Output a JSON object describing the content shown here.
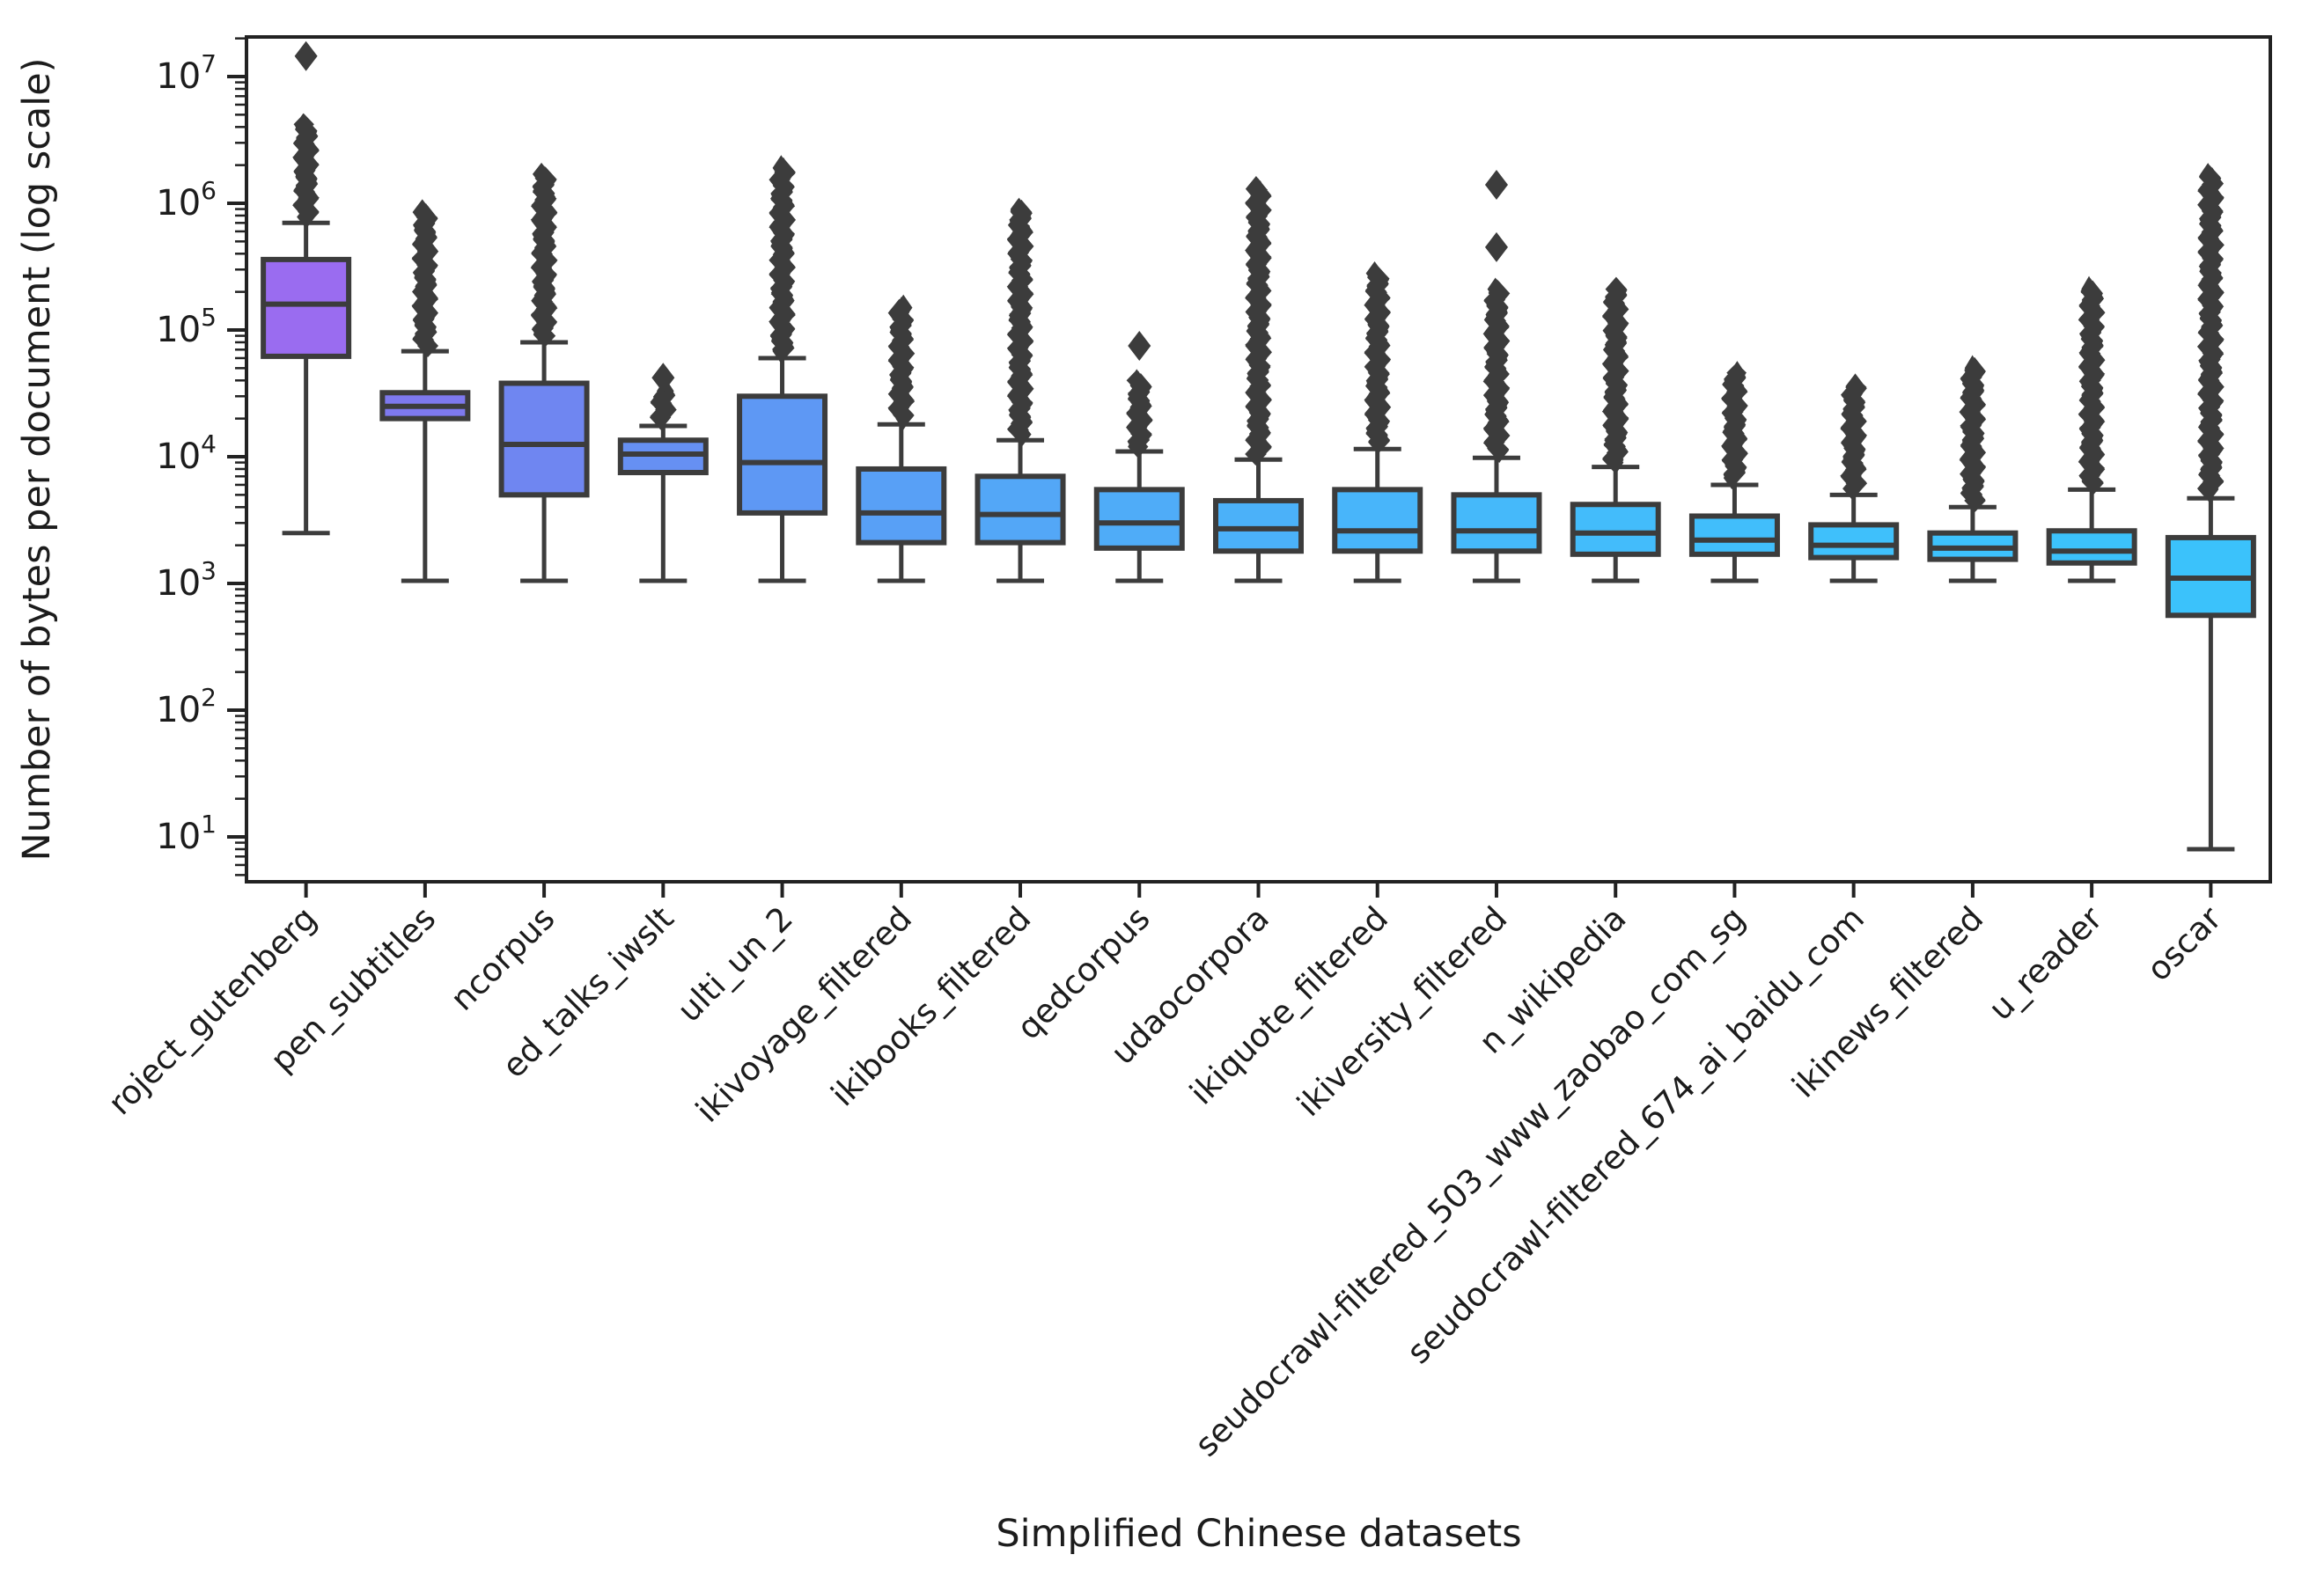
{
  "figure": {
    "background": "#ffffff"
  },
  "chart_data": {
    "type": "box",
    "xlabel": "Simplified Chinese datasets",
    "ylabel": "Number of bytes per document (log scale)",
    "y_scale": "log",
    "y_tick_exponents": [
      7,
      6,
      5,
      4,
      3,
      2,
      1
    ],
    "ylim_log": [
      0.64,
      7.31
    ],
    "grid": false,
    "legend": "none",
    "line_color": "#3C3C3C",
    "spine_color": "#222222",
    "series": [
      {
        "label": "roject_gutenberg",
        "color": "#9A6CF0",
        "whisker_low": 2500,
        "q1": 62000,
        "median": 160000,
        "q3": 360000,
        "whisker_high": 700000,
        "outlier_column": [
          780000,
          4200000
        ],
        "extra_outliers": [
          14500000
        ]
      },
      {
        "label": "pen_subtitles",
        "color": "#7E79EE",
        "whisker_low": 1050,
        "q1": 20000,
        "median": 25000,
        "q3": 32000,
        "whisker_high": 68000,
        "outlier_column": [
          75000,
          850000
        ],
        "extra_outliers": []
      },
      {
        "label": "ncorpus",
        "color": "#6F86F1",
        "whisker_low": 1050,
        "q1": 5000,
        "median": 12500,
        "q3": 38000,
        "whisker_high": 80000,
        "outlier_column": [
          90000,
          1700000
        ],
        "extra_outliers": []
      },
      {
        "label": "ed_talks_iwslt",
        "color": "#6690F3",
        "whisker_low": 1050,
        "q1": 7500,
        "median": 10500,
        "q3": 13500,
        "whisker_high": 17500,
        "outlier_column": [
          20000,
          33000
        ],
        "extra_outliers": [
          42000
        ]
      },
      {
        "label": "ulti_un_2",
        "color": "#5E98F4",
        "whisker_low": 1050,
        "q1": 3600,
        "median": 9000,
        "q3": 30000,
        "whisker_high": 60000,
        "outlier_column": [
          68000,
          1900000
        ],
        "extra_outliers": []
      },
      {
        "label": "ikivoyage_filtered",
        "color": "#58A0F6",
        "whisker_low": 1050,
        "q1": 2100,
        "median": 3600,
        "q3": 8000,
        "whisker_high": 18000,
        "outlier_column": [
          20000,
          150000
        ],
        "extra_outliers": []
      },
      {
        "label": "ikibooks_filtered",
        "color": "#53A7F7",
        "whisker_low": 1050,
        "q1": 2100,
        "median": 3500,
        "q3": 7000,
        "whisker_high": 13500,
        "outlier_column": [
          15000,
          900000
        ],
        "extra_outliers": []
      },
      {
        "label": "qedcorpus",
        "color": "#4FACF8",
        "whisker_low": 1050,
        "q1": 1900,
        "median": 3000,
        "q3": 5500,
        "whisker_high": 11000,
        "outlier_column": [
          12000,
          40000
        ],
        "extra_outliers": [
          75000
        ]
      },
      {
        "label": "udaocorpora",
        "color": "#4BB1F9",
        "whisker_low": 1050,
        "q1": 1800,
        "median": 2700,
        "q3": 4500,
        "whisker_high": 9500,
        "outlier_column": [
          10500,
          1300000
        ],
        "extra_outliers": []
      },
      {
        "label": "ikiquote_filtered",
        "color": "#48B5FA",
        "whisker_low": 1050,
        "q1": 1800,
        "median": 2600,
        "q3": 5500,
        "whisker_high": 11500,
        "outlier_column": [
          13000,
          280000
        ],
        "extra_outliers": []
      },
      {
        "label": "ikiversity_filtered",
        "color": "#45B9FA",
        "whisker_low": 1050,
        "q1": 1800,
        "median": 2600,
        "q3": 5000,
        "whisker_high": 9800,
        "outlier_column": [
          11000,
          210000
        ],
        "extra_outliers": [
          450000,
          1400000
        ]
      },
      {
        "label": "n_wikipedia",
        "color": "#43BCFB",
        "whisker_low": 1050,
        "q1": 1700,
        "median": 2500,
        "q3": 4200,
        "whisker_high": 8300,
        "outlier_column": [
          9000,
          210000
        ],
        "extra_outliers": []
      },
      {
        "label": "seudocrawl-filtered_503_www_zaobao_com_sg",
        "color": "#41BEFB",
        "whisker_low": 1050,
        "q1": 1700,
        "median": 2200,
        "q3": 3400,
        "whisker_high": 6000,
        "outlier_column": [
          6800,
          46000
        ],
        "extra_outliers": []
      },
      {
        "label": "seudocrawl-filtered_674_ai_baidu_com",
        "color": "#3FC0FB",
        "whisker_low": 1050,
        "q1": 1600,
        "median": 2000,
        "q3": 2900,
        "whisker_high": 5000,
        "outlier_column": [
          5600,
          36000
        ],
        "extra_outliers": []
      },
      {
        "label": "ikinews_filtered",
        "color": "#3DC1FB",
        "whisker_low": 1050,
        "q1": 1550,
        "median": 1900,
        "q3": 2500,
        "whisker_high": 4000,
        "outlier_column": [
          4500,
          50000
        ],
        "extra_outliers": []
      },
      {
        "label": "u_reader",
        "color": "#3CC2FB",
        "whisker_low": 1050,
        "q1": 1450,
        "median": 1800,
        "q3": 2600,
        "whisker_high": 5500,
        "outlier_column": [
          6200,
          210000
        ],
        "extra_outliers": []
      },
      {
        "label": "oscar",
        "color": "#3BC2FB",
        "whisker_low": 8,
        "q1": 560,
        "median": 1100,
        "q3": 2300,
        "whisker_high": 4700,
        "outlier_column": [
          5400,
          1700000
        ],
        "extra_outliers": []
      }
    ]
  }
}
